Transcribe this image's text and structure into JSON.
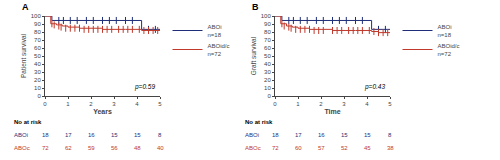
{
  "chart_data": [
    {
      "type": "line",
      "title": "A",
      "xlabel": "Years",
      "ylabel": "Patient survival",
      "annotations": [
        {
          "text": "p=0.59"
        }
      ],
      "xlim": [
        0,
        5
      ],
      "xticks": [
        0,
        1,
        2,
        3,
        4,
        5
      ],
      "ylim": [
        0,
        100
      ],
      "yticks": [
        0,
        10,
        20,
        30,
        40,
        50,
        60,
        70,
        80,
        90,
        100
      ],
      "grid": false,
      "legend": "right",
      "series": [
        {
          "name": "ABOi\nn=18",
          "color": "#1f2f7a",
          "line_style": "step",
          "x": [
            0,
            0.3,
            4.2,
            4.2,
            5
          ],
          "values": [
            100,
            94.4,
            94.4,
            83.3,
            83.3
          ],
          "censors": {
            "x": [
              0.6,
              0.8,
              1.1,
              1.4,
              1.8,
              2.1,
              2.5,
              2.8,
              3.1,
              3.5,
              3.8,
              4.5,
              4.8
            ],
            "values": [
              94.4,
              94.4,
              94.4,
              94.4,
              94.4,
              94.4,
              94.4,
              94.4,
              94.4,
              94.4,
              94.4,
              83.3,
              83.3
            ]
          }
        },
        {
          "name": "ABOid/c\nn=72",
          "color": "#c0392b",
          "line_style": "step",
          "x": [
            0,
            0.25,
            0.5,
            0.75,
            1.0,
            1.5,
            2.0,
            2.5,
            3.0,
            3.5,
            4.0,
            4.2,
            4.5,
            5.0
          ],
          "values": [
            100,
            90.3,
            88.9,
            87.5,
            86.1,
            84.7,
            84.7,
            83.3,
            83.3,
            83.3,
            83.3,
            81.9,
            81.9,
            81.9
          ],
          "censors": {
            "x": [
              0.3,
              0.4,
              0.6,
              0.7,
              0.9,
              1.1,
              1.3,
              1.5,
              1.7,
              1.9,
              2.1,
              2.3,
              2.5,
              2.7,
              2.9,
              3.2,
              3.4,
              3.6,
              3.8,
              4.1,
              4.3,
              4.5,
              4.7,
              4.9
            ],
            "values": [
              90.3,
              88.9,
              87.5,
              86.1,
              84.7,
              84.7,
              84.7,
              84.7,
              83.3,
              83.3,
              83.3,
              83.3,
              83.3,
              83.3,
              83.3,
              83.3,
              83.3,
              83.3,
              83.3,
              83.3,
              81.9,
              81.9,
              81.9,
              81.9
            ]
          }
        }
      ],
      "at_risk": {
        "label": "No at risk",
        "x": [
          0,
          1,
          2,
          3,
          4,
          5
        ],
        "rows": [
          {
            "name": "ABOi",
            "values": [
              18,
              17,
              16,
              15,
              15,
              8
            ]
          },
          {
            "name": "ABOc",
            "values": [
              72,
              62,
              59,
              56,
              48,
              40
            ]
          }
        ]
      }
    },
    {
      "type": "line",
      "title": "B",
      "xlabel": "Time",
      "ylabel": "Graft survival",
      "annotations": [
        {
          "text": "p=0.43"
        }
      ],
      "xlim": [
        0,
        5
      ],
      "xticks": [
        0,
        1,
        2,
        3,
        4,
        5
      ],
      "ylim": [
        0,
        100
      ],
      "yticks": [
        0,
        10,
        20,
        30,
        40,
        50,
        60,
        70,
        80,
        90,
        100
      ],
      "grid": false,
      "legend": "right",
      "series": [
        {
          "name": "ABOi\nn=18",
          "color": "#1f2f7a",
          "line_style": "step",
          "x": [
            0,
            0.3,
            4.2,
            4.2,
            5
          ],
          "values": [
            100,
            94.4,
            94.4,
            83.3,
            83.3
          ],
          "censors": {
            "x": [
              0.6,
              0.8,
              1.1,
              1.4,
              1.8,
              2.1,
              2.5,
              2.8,
              3.1,
              3.5,
              3.8,
              4.5,
              4.8
            ],
            "values": [
              94.4,
              94.4,
              94.4,
              94.4,
              94.4,
              94.4,
              94.4,
              94.4,
              94.4,
              94.4,
              94.4,
              83.3,
              83.3
            ]
          }
        },
        {
          "name": "ABOid/c\nn=72",
          "color": "#c0392b",
          "line_style": "step",
          "x": [
            0,
            0.25,
            0.5,
            0.75,
            1.0,
            1.5,
            2.0,
            2.5,
            3.0,
            3.5,
            4.0,
            4.2,
            4.5,
            5.0
          ],
          "values": [
            100,
            90.3,
            87.5,
            86.1,
            84.7,
            83.3,
            83.3,
            81.9,
            81.9,
            81.9,
            81.9,
            80.6,
            79.2,
            79.2
          ],
          "censors": {
            "x": [
              0.3,
              0.4,
              0.6,
              0.7,
              0.9,
              1.1,
              1.3,
              1.5,
              1.7,
              1.9,
              2.1,
              2.5,
              2.7,
              2.9,
              3.2,
              3.4,
              3.6,
              3.8,
              4.1,
              4.3,
              4.5,
              4.7,
              4.9
            ],
            "values": [
              90.3,
              87.5,
              86.1,
              84.7,
              83.3,
              83.3,
              83.3,
              83.3,
              81.9,
              81.9,
              81.9,
              81.9,
              81.9,
              81.9,
              81.9,
              81.9,
              81.9,
              81.9,
              81.9,
              80.6,
              79.2,
              79.2,
              79.2
            ]
          }
        }
      ],
      "at_risk": {
        "label": "No at risk",
        "x": [
          0,
          1,
          2,
          3,
          4,
          5
        ],
        "rows": [
          {
            "name": "ABOi",
            "values": [
              18,
              17,
              16,
              15,
              15,
              8
            ]
          },
          {
            "name": "ABOc",
            "values": [
              72,
              60,
              57,
              52,
              45,
              38
            ]
          }
        ]
      }
    }
  ]
}
